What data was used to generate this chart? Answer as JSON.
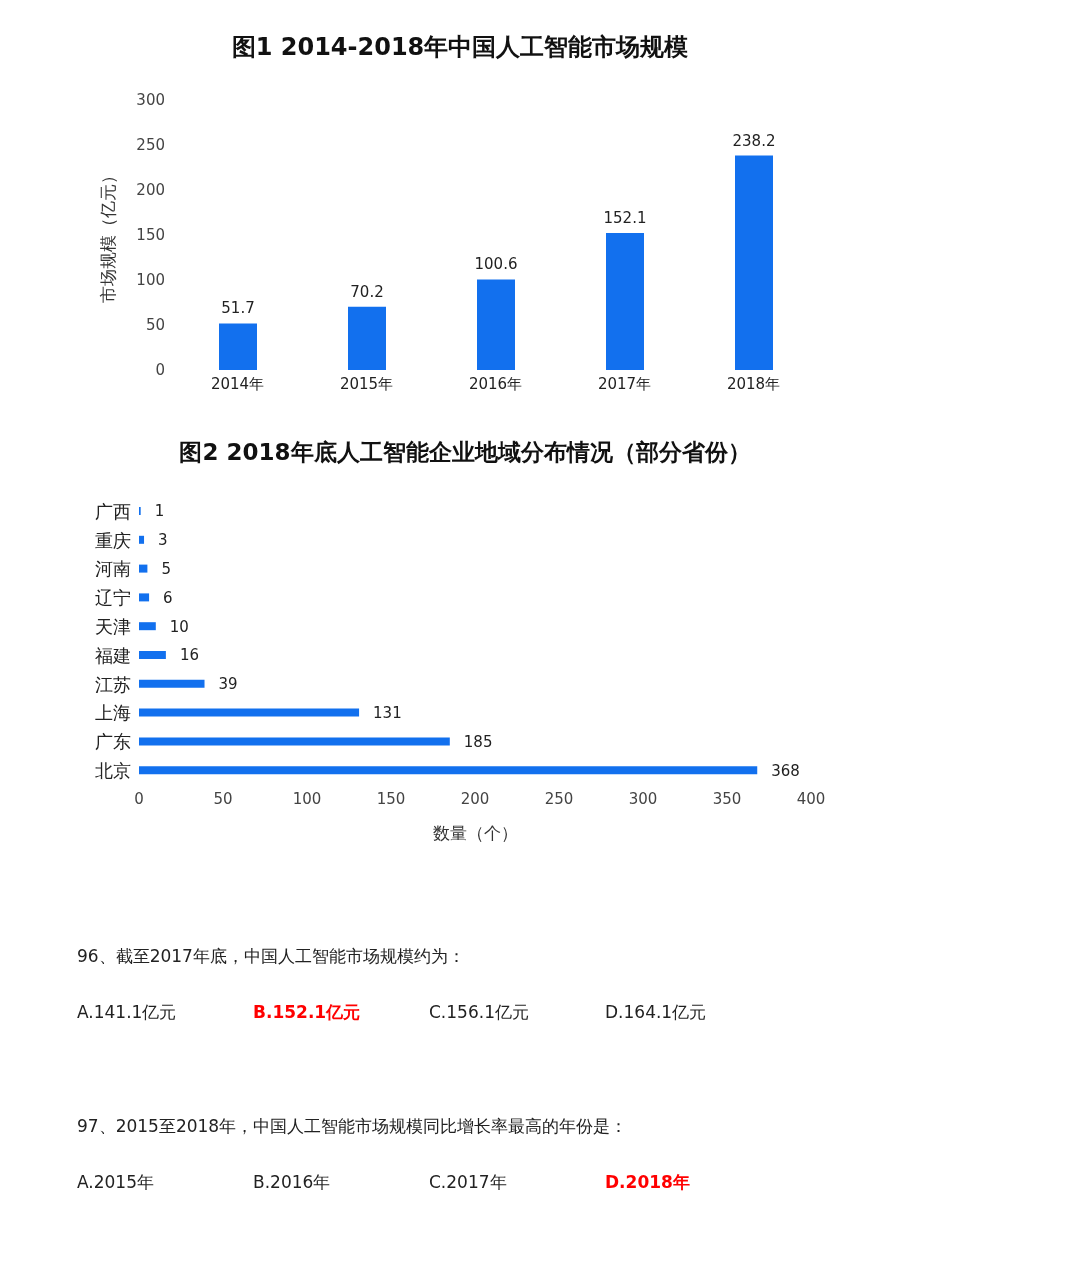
{
  "chart_data": [
    {
      "type": "bar",
      "title": "图1 2014-2018年中国人工智能市场规模",
      "categories": [
        "2014年",
        "2015年",
        "2016年",
        "2017年",
        "2018年"
      ],
      "values": [
        51.7,
        70.2,
        100.6,
        152.1,
        238.2
      ],
      "color": "#1270ee",
      "ylabel": "市场规模（亿元）",
      "ylim": [
        0,
        300
      ],
      "yticks": [
        0,
        50,
        100,
        150,
        200,
        250,
        300
      ],
      "data_labels": true
    },
    {
      "type": "bar",
      "orientation": "horizontal",
      "title": "图2 2018年底人工智能企业地域分布情况（部分省份）",
      "categories": [
        "广西",
        "重庆",
        "河南",
        "辽宁",
        "天津",
        "福建",
        "江苏",
        "上海",
        "广东",
        "北京"
      ],
      "values": [
        1,
        3,
        5,
        6,
        10,
        16,
        39,
        131,
        185,
        368
      ],
      "color": "#1270ee",
      "xlabel": "数量（个）",
      "xlim": [
        0,
        400
      ],
      "xticks": [
        0,
        50,
        100,
        150,
        200,
        250,
        300,
        350,
        400
      ],
      "data_labels": true
    },
    {
      "type": "other",
      "color": "#222222",
      "annotations": [
        "96、截至2017年底，中国人工智能市场规模约为：",
        "A.141.1亿元",
        "B.152.1亿元",
        "C.156.1亿元",
        "D.164.1亿元",
        "97、2015至2018年，中国人工智能市场规模同比增长率最高的年份是：",
        "A.2015年",
        "B.2016年",
        "C.2017年",
        "D.2018年"
      ],
      "colors": [
        "#222222",
        "#222222",
        "#ff0000",
        "#222222",
        "#222222",
        "#222222",
        "#222222",
        "#222222",
        "#222222",
        "#ff0000"
      ]
    }
  ]
}
